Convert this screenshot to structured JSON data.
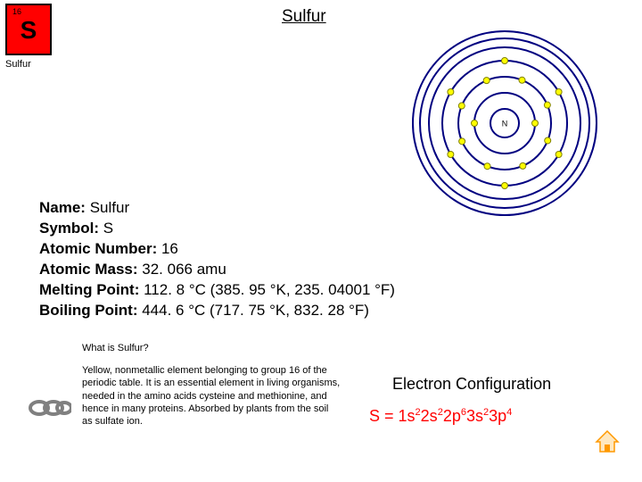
{
  "tile": {
    "number": "16",
    "symbol": "S",
    "name": "Sulfur",
    "bg_color": "#ff0000",
    "border_color": "#000000"
  },
  "title": "Sulfur",
  "atom": {
    "nucleus_label": "N",
    "ring_color": "#000080",
    "electron_fill": "#ffff00",
    "electron_stroke": "#808000",
    "shells": [
      {
        "r": 34,
        "offset_deg": 0,
        "electrons": 2
      },
      {
        "r": 52,
        "offset_deg": 22,
        "electrons": 8
      },
      {
        "r": 70,
        "offset_deg": 30,
        "electrons": 6
      },
      {
        "r": 85,
        "offset_deg": 0,
        "electrons": 0
      },
      {
        "r": 95,
        "offset_deg": 0,
        "electrons": 0
      },
      {
        "r": 103,
        "offset_deg": 0,
        "electrons": 0
      }
    ]
  },
  "facts": [
    {
      "label": "Name:",
      "value": " Sulfur"
    },
    {
      "label": "Symbol:",
      "value": " S"
    },
    {
      "label": "Atomic Number:",
      "value": " 16"
    },
    {
      "label": "Atomic Mass:",
      "value": " 32. 066 amu"
    },
    {
      "label": "Melting Point:",
      "value": " 112. 8 °C (385. 95 °K, 235. 04001 °F)"
    },
    {
      "label": "Boiling Point:",
      "value": " 444. 6 °C (717. 75 °K, 832. 28 °F)"
    }
  ],
  "question": "What is Sulfur?",
  "description": "Yellow, nonmetallic element belonging to group 16 of the periodic table. It is an essential element in living organisms, needed in the amino acids cysteine and methionine, and hence in many proteins. Absorbed by plants from the soil as sulfate ion.",
  "econfig": {
    "title": "Electron Configuration",
    "prefix": "S = ",
    "parts": [
      {
        "base": "1s",
        "sup": "2"
      },
      {
        "base": "2s",
        "sup": "2"
      },
      {
        "base": "2p",
        "sup": "6"
      },
      {
        "base": "3s",
        "sup": "2"
      },
      {
        "base": "3p",
        "sup": "4"
      }
    ],
    "color": "#ff0000"
  },
  "icons": {
    "chain_color": "#808080",
    "home_stroke": "#ff9900",
    "home_fill": "#ffe8c0"
  }
}
